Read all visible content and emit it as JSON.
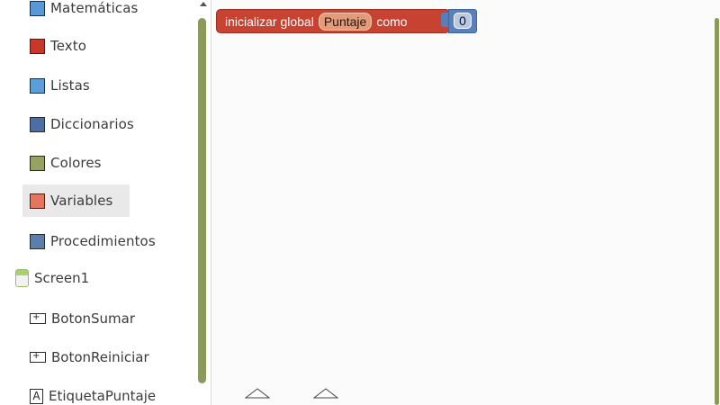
{
  "sidebar": {
    "builtin_blocks": [
      {
        "label": "Matemáticas",
        "color": "#5b97d6"
      },
      {
        "label": "Texto",
        "color": "#c8382a"
      },
      {
        "label": "Listas",
        "color": "#5b9ed9"
      },
      {
        "label": "Diccionarios",
        "color": "#4b6fa4"
      },
      {
        "label": "Colores",
        "color": "#96a264"
      },
      {
        "label": "Variables",
        "color": "#e2765e",
        "selected": true
      },
      {
        "label": "Procedimientos",
        "color": "#5a7fae"
      }
    ],
    "screen": {
      "label": "Screen1"
    },
    "components": [
      {
        "label": "BotonSumar",
        "icon": "button-icon"
      },
      {
        "label": "BotonReiniciar",
        "icon": "button-icon"
      },
      {
        "label": "EtiquetaPuntaje",
        "icon": "label-icon",
        "glyph": "A"
      }
    ]
  },
  "workspace": {
    "global_var_block": {
      "prefix": "inicializar global",
      "name": "Puntaje",
      "suffix": "como",
      "value": "0",
      "color": "#c84232",
      "value_color": "#5b80b9"
    }
  }
}
